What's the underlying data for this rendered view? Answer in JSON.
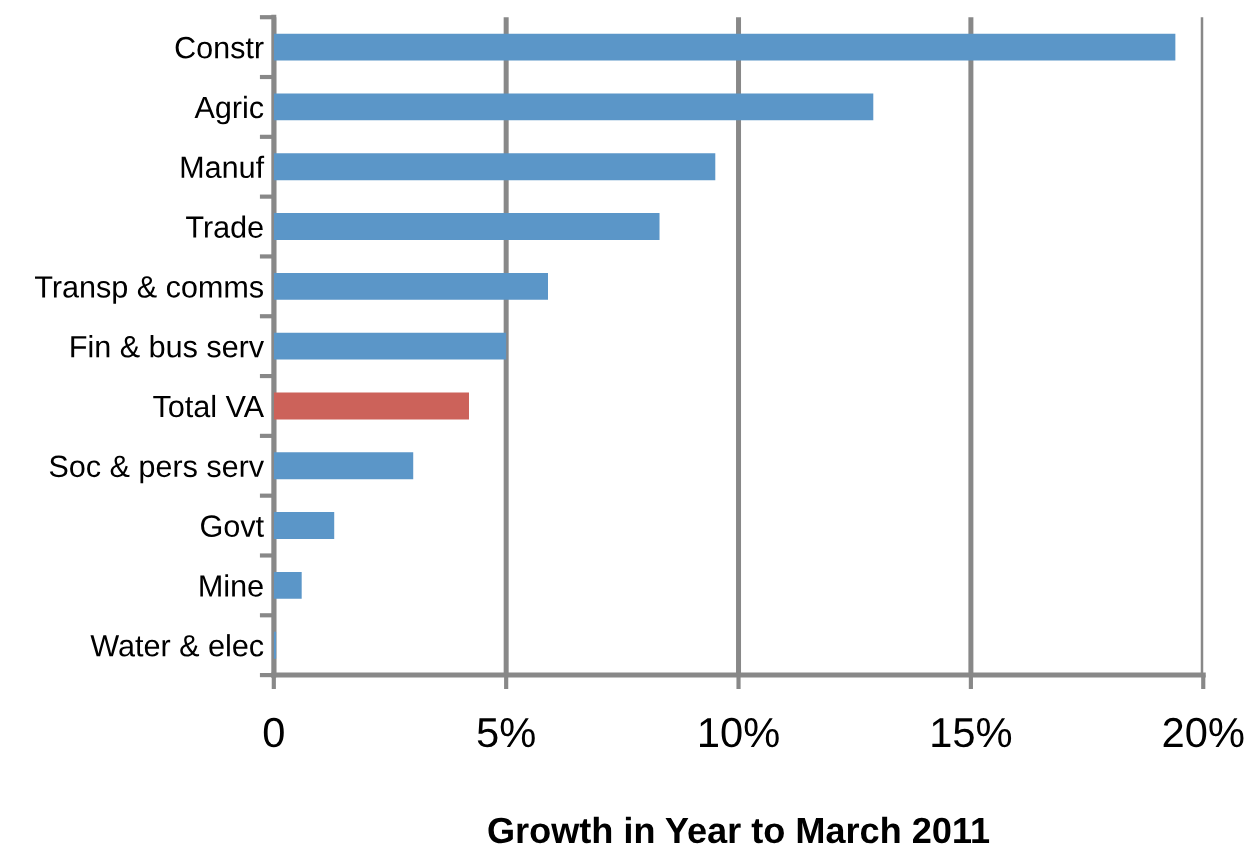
{
  "chart_data": {
    "type": "bar",
    "orientation": "horizontal",
    "xlabel": "Growth in Year to March 2011",
    "categories": [
      "Constr",
      "Agric",
      "Manuf",
      "Trade",
      "Transp & comms",
      "Fin & bus serv",
      "Total VA",
      "Soc & pers serv",
      "Govt",
      "Mine",
      "Water & elec"
    ],
    "values": [
      19.4,
      12.9,
      9.5,
      8.3,
      5.9,
      5.0,
      4.2,
      3.0,
      1.3,
      0.6,
      0.05
    ],
    "colors": [
      "#5b96c8",
      "#5b96c8",
      "#5b96c8",
      "#5b96c8",
      "#5b96c8",
      "#5b96c8",
      "#cc625a",
      "#5b96c8",
      "#5b96c8",
      "#5b96c8",
      "#5b96c8"
    ],
    "xlim": [
      0,
      20
    ],
    "xticks": [
      0,
      {
        "value": 5,
        "label": "5%"
      },
      {
        "value": 10,
        "label": "10%"
      },
      {
        "value": 15,
        "label": "15%"
      },
      {
        "value": 20,
        "label": "20%"
      }
    ],
    "grid": "x"
  }
}
